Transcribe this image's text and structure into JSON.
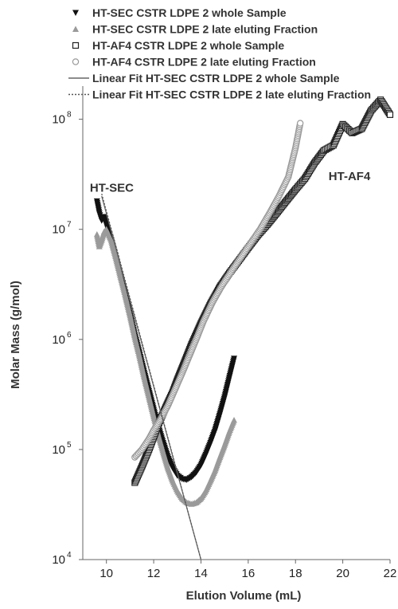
{
  "chart_data": {
    "type": "scatter",
    "xlabel": "Elution Volume (mL)",
    "ylabel": "Molar Mass (g/mol)",
    "xlim": [
      9,
      22
    ],
    "ylim": [
      10000,
      200000000
    ],
    "yscale": "log",
    "xticks": [
      10,
      12,
      14,
      16,
      18,
      20,
      22
    ],
    "xtick_labels": [
      "10",
      "12",
      "14",
      "16",
      "18",
      "20",
      "22"
    ],
    "yticks": [
      10000,
      100000,
      1000000,
      10000000,
      100000000
    ],
    "ytick_labels": [
      {
        "base": "10",
        "exp": "4"
      },
      {
        "base": "10",
        "exp": "5"
      },
      {
        "base": "10",
        "exp": "6"
      },
      {
        "base": "10",
        "exp": "7"
      },
      {
        "base": "10",
        "exp": "8"
      }
    ],
    "grid": false,
    "legend_position": "top-left",
    "annotations": [
      {
        "text": "HT-SEC",
        "x": 9.3,
        "y": 22000000
      },
      {
        "text": "HT-AF4",
        "x": 19.4,
        "y": 28000000
      }
    ],
    "series": [
      {
        "name": "HT-SEC CSTR LDPE 2 whole Sample",
        "marker": "triangle-down",
        "color": "#111111",
        "x": [
          9.6,
          9.7,
          9.8,
          9.9,
          10.0,
          10.2,
          10.4,
          10.6,
          10.8,
          11.0,
          11.2,
          11.4,
          11.6,
          11.8,
          12.0,
          12.2,
          12.4,
          12.6,
          12.8,
          13.0,
          13.2,
          13.4,
          13.6,
          13.8,
          14.0,
          14.2,
          14.4,
          14.6,
          14.8,
          15.0,
          15.2,
          15.4
        ],
        "y": [
          18000000,
          14000000,
          12000000,
          13000000,
          11000000,
          8000000,
          5500000,
          3700000,
          2500000,
          1700000,
          1100000,
          750000,
          500000,
          340000,
          230000,
          160000,
          115000,
          85000,
          68000,
          58000,
          54000,
          53000,
          56000,
          62000,
          72000,
          90000,
          115000,
          150000,
          210000,
          300000,
          450000,
          670000
        ]
      },
      {
        "name": "HT-SEC CSTR LDPE 2 late eluting Fraction",
        "marker": "triangle-up",
        "color": "#9a9a9a",
        "x": [
          9.6,
          9.7,
          9.8,
          9.9,
          10.0,
          10.2,
          10.4,
          10.6,
          10.8,
          11.0,
          11.2,
          11.4,
          11.6,
          11.8,
          12.0,
          12.2,
          12.4,
          12.6,
          12.8,
          13.0,
          13.2,
          13.4,
          13.6,
          13.8,
          14.0,
          14.2,
          14.4,
          14.6,
          14.8,
          15.0,
          15.2,
          15.4
        ],
        "y": [
          9000000,
          7000000,
          8000000,
          9500000,
          10000000,
          8000000,
          5500000,
          3700000,
          2500000,
          1650000,
          1050000,
          700000,
          450000,
          300000,
          200000,
          135000,
          95000,
          68000,
          52000,
          42000,
          36000,
          33000,
          32000,
          33000,
          36000,
          42000,
          52000,
          65000,
          85000,
          110000,
          145000,
          185000
        ]
      },
      {
        "name": "HT-AF4 CSTR LDPE 2 whole Sample",
        "marker": "square-open",
        "color": "#222222",
        "x": [
          11.2,
          11.5,
          11.8,
          12.0,
          12.2,
          12.5,
          12.8,
          13.0,
          13.3,
          13.6,
          14.0,
          14.4,
          14.8,
          15.2,
          15.6,
          16.0,
          16.4,
          16.8,
          17.2,
          17.6,
          18.0,
          18.4,
          18.8,
          19.2,
          19.6,
          20.0,
          20.4,
          20.8,
          21.2,
          21.6,
          22.0
        ],
        "y": [
          50000,
          70000,
          100000,
          130000,
          170000,
          240000,
          330000,
          430000,
          620000,
          900000,
          1400000,
          2100000,
          3000000,
          4000000,
          5200000,
          6800000,
          8800000,
          11000000,
          14000000,
          18000000,
          23000000,
          29000000,
          40000000,
          52000000,
          58000000,
          90000000,
          75000000,
          82000000,
          120000000,
          150000000,
          110000000
        ]
      },
      {
        "name": "HT-AF4 CSTR LDPE 2 late eluting Fraction",
        "marker": "circle-open",
        "color": "#9a9a9a",
        "x": [
          11.2,
          11.5,
          11.8,
          12.0,
          12.3,
          12.6,
          12.9,
          13.2,
          13.5,
          13.8,
          14.1,
          14.5,
          14.9,
          15.3,
          15.7,
          16.1,
          16.5,
          16.9,
          17.3,
          17.7,
          18.0,
          18.2
        ],
        "y": [
          85000,
          100000,
          125000,
          150000,
          190000,
          250000,
          350000,
          490000,
          700000,
          1000000,
          1450000,
          2200000,
          3100000,
          4200000,
          5600000,
          7500000,
          10000000,
          14000000,
          20000000,
          30000000,
          55000000,
          92000000
        ]
      },
      {
        "name": "Linear Fit HT-SEC CSTR LDPE 2 whole Sample",
        "marker": "line-solid",
        "color": "#666666",
        "x": [
          9.8,
          14.0
        ],
        "y": [
          20000000,
          9500
        ]
      },
      {
        "name": "Linear Fit HT-SEC CSTR LDPE 2 late eluting Fraction",
        "marker": "line-dotted",
        "color": "#555555",
        "x": [
          9.8,
          14.0
        ],
        "y": [
          21000000,
          9000
        ]
      }
    ]
  }
}
